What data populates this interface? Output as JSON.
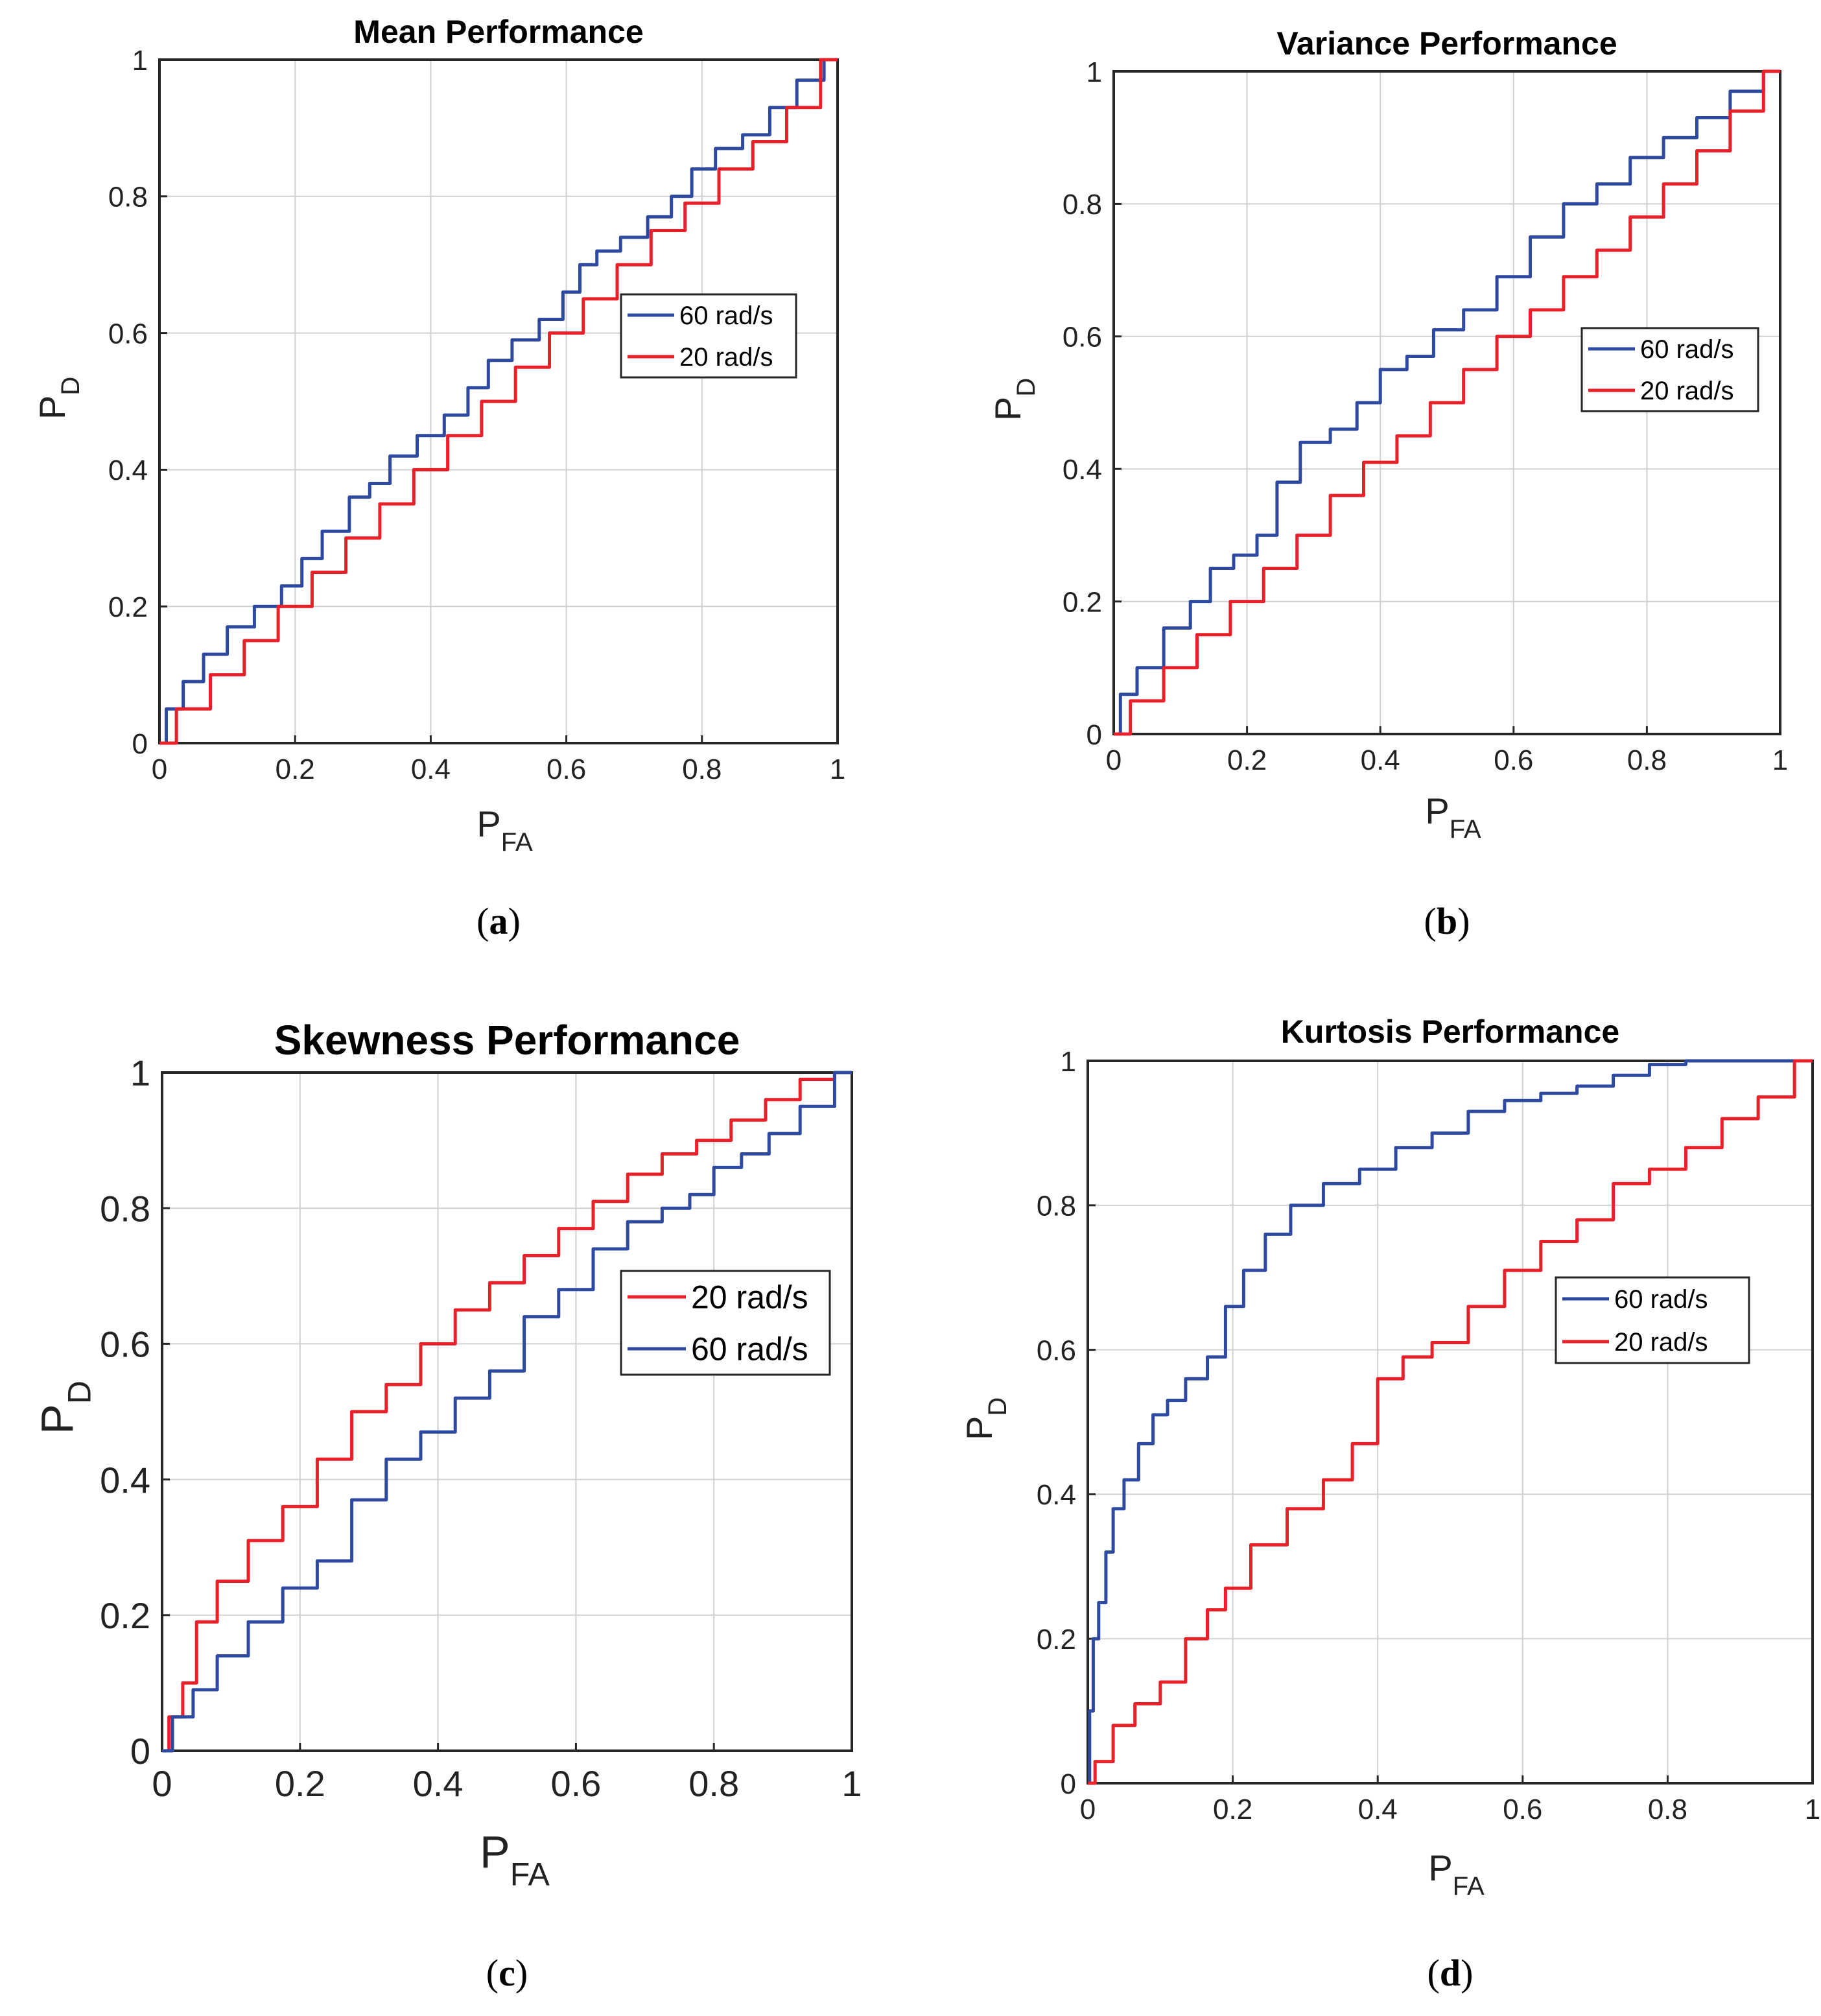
{
  "figure": {
    "colors": {
      "blue": "#2e4aa0",
      "red": "#e8202a",
      "grid": "#d0d0d0",
      "axis": "#262626"
    }
  },
  "chart_data": [
    {
      "type": "line",
      "title": "Mean Performance",
      "caption": "a",
      "xlabel": {
        "main": "P",
        "sub": "FA"
      },
      "ylabel": {
        "main": "P",
        "sub": "D"
      },
      "xlim": [
        0,
        1
      ],
      "ylim": [
        0,
        1
      ],
      "xticks": [
        "0",
        "0.2",
        "0.4",
        "0.6",
        "0.8",
        "1"
      ],
      "yticks": [
        "0",
        "0.2",
        "0.4",
        "0.6",
        "0.8",
        "1"
      ],
      "grid": true,
      "legend_position": "center-right",
      "series": [
        {
          "name": "60 rad/s",
          "color": "blue",
          "x": [
            0,
            0.02,
            0.05,
            0.08,
            0.12,
            0.16,
            0.2,
            0.22,
            0.26,
            0.3,
            0.32,
            0.36,
            0.4,
            0.44,
            0.47,
            0.5,
            0.54,
            0.58,
            0.61,
            0.63,
            0.66,
            0.7,
            0.74,
            0.77,
            0.8,
            0.84,
            0.88,
            0.92,
            0.96,
            1
          ],
          "y": [
            0,
            0.05,
            0.09,
            0.13,
            0.17,
            0.2,
            0.23,
            0.27,
            0.31,
            0.36,
            0.38,
            0.42,
            0.45,
            0.48,
            0.52,
            0.56,
            0.59,
            0.62,
            0.66,
            0.7,
            0.72,
            0.74,
            0.77,
            0.8,
            0.84,
            0.87,
            0.89,
            0.93,
            0.97,
            1
          ]
        },
        {
          "name": "20 rad/s",
          "color": "red",
          "x": [
            0,
            0.05,
            0.1,
            0.15,
            0.2,
            0.25,
            0.3,
            0.35,
            0.4,
            0.45,
            0.5,
            0.55,
            0.6,
            0.65,
            0.7,
            0.75,
            0.8,
            0.85,
            0.9,
            0.95,
            1
          ],
          "y": [
            0,
            0.05,
            0.1,
            0.15,
            0.2,
            0.25,
            0.3,
            0.35,
            0.4,
            0.45,
            0.5,
            0.55,
            0.6,
            0.65,
            0.7,
            0.75,
            0.79,
            0.84,
            0.88,
            0.93,
            1
          ]
        }
      ]
    },
    {
      "type": "line",
      "title": "Variance Performance",
      "caption": "b",
      "xlabel": {
        "main": "P",
        "sub": "FA"
      },
      "ylabel": {
        "main": "P",
        "sub": "D"
      },
      "xlim": [
        0,
        1
      ],
      "ylim": [
        0,
        1
      ],
      "xticks": [
        "0",
        "0.2",
        "0.4",
        "0.6",
        "0.8",
        "1"
      ],
      "yticks": [
        "0",
        "0.2",
        "0.4",
        "0.6",
        "0.8",
        "1"
      ],
      "grid": true,
      "legend_position": "center-right",
      "series": [
        {
          "name": "60 rad/s",
          "color": "blue",
          "x": [
            0,
            0.02,
            0.05,
            0.1,
            0.13,
            0.16,
            0.2,
            0.23,
            0.26,
            0.3,
            0.35,
            0.38,
            0.42,
            0.46,
            0.5,
            0.55,
            0.6,
            0.65,
            0.7,
            0.75,
            0.8,
            0.85,
            0.9,
            0.95,
            1
          ],
          "y": [
            0,
            0.06,
            0.1,
            0.16,
            0.2,
            0.25,
            0.27,
            0.3,
            0.38,
            0.44,
            0.46,
            0.5,
            0.55,
            0.57,
            0.61,
            0.64,
            0.69,
            0.75,
            0.8,
            0.83,
            0.87,
            0.9,
            0.93,
            0.97,
            1
          ]
        },
        {
          "name": "20 rad/s",
          "color": "red",
          "x": [
            0,
            0.05,
            0.1,
            0.15,
            0.2,
            0.25,
            0.3,
            0.35,
            0.4,
            0.45,
            0.5,
            0.55,
            0.6,
            0.65,
            0.7,
            0.75,
            0.8,
            0.85,
            0.9,
            0.95,
            1
          ],
          "y": [
            0,
            0.05,
            0.1,
            0.15,
            0.2,
            0.25,
            0.3,
            0.36,
            0.41,
            0.45,
            0.5,
            0.55,
            0.6,
            0.64,
            0.69,
            0.73,
            0.78,
            0.83,
            0.88,
            0.94,
            1
          ]
        }
      ]
    },
    {
      "type": "line",
      "title": "Skewness Performance",
      "caption": "c",
      "xlabel": {
        "main": "P",
        "sub": "FA"
      },
      "ylabel": {
        "main": "P",
        "sub": "D"
      },
      "xlim": [
        0,
        1
      ],
      "ylim": [
        0,
        1
      ],
      "xticks": [
        "0",
        "0.2",
        "0.4",
        "0.6",
        "0.8",
        "1"
      ],
      "yticks": [
        "0",
        "0.2",
        "0.4",
        "0.6",
        "0.8",
        "1"
      ],
      "grid": true,
      "legend_position": "center-right",
      "series": [
        {
          "name": "20 rad/s",
          "color": "red",
          "x": [
            0,
            0.02,
            0.04,
            0.06,
            0.1,
            0.15,
            0.2,
            0.25,
            0.3,
            0.35,
            0.4,
            0.45,
            0.5,
            0.55,
            0.6,
            0.65,
            0.7,
            0.75,
            0.8,
            0.85,
            0.9,
            0.95,
            1
          ],
          "y": [
            0,
            0.05,
            0.1,
            0.19,
            0.25,
            0.31,
            0.36,
            0.43,
            0.5,
            0.54,
            0.6,
            0.65,
            0.69,
            0.73,
            0.77,
            0.81,
            0.85,
            0.88,
            0.9,
            0.93,
            0.96,
            0.99,
            1
          ]
        },
        {
          "name": "60 rad/s",
          "color": "blue",
          "x": [
            0,
            0.03,
            0.06,
            0.1,
            0.15,
            0.2,
            0.25,
            0.3,
            0.35,
            0.4,
            0.45,
            0.5,
            0.55,
            0.6,
            0.65,
            0.7,
            0.75,
            0.78,
            0.82,
            0.86,
            0.9,
            0.95,
            1
          ],
          "y": [
            0,
            0.05,
            0.09,
            0.14,
            0.19,
            0.24,
            0.28,
            0.37,
            0.43,
            0.47,
            0.52,
            0.56,
            0.64,
            0.68,
            0.74,
            0.78,
            0.8,
            0.82,
            0.86,
            0.88,
            0.91,
            0.95,
            1
          ]
        }
      ]
    },
    {
      "type": "line",
      "title": "Kurtosis Performance",
      "caption": "d",
      "xlabel": {
        "main": "P",
        "sub": "FA"
      },
      "ylabel": {
        "main": "P",
        "sub": "D"
      },
      "xlim": [
        0,
        1
      ],
      "ylim": [
        0,
        1
      ],
      "xticks": [
        "0",
        "0.2",
        "0.4",
        "0.6",
        "0.8",
        "1"
      ],
      "yticks": [
        "0",
        "0.2",
        "0.4",
        "0.6",
        "0.8",
        "1"
      ],
      "grid": true,
      "legend_position": "center-right",
      "series": [
        {
          "name": "60 rad/s",
          "color": "blue",
          "x": [
            0,
            0.005,
            0.01,
            0.02,
            0.03,
            0.04,
            0.06,
            0.08,
            0.1,
            0.12,
            0.15,
            0.18,
            0.2,
            0.23,
            0.26,
            0.3,
            0.35,
            0.4,
            0.45,
            0.5,
            0.55,
            0.6,
            0.65,
            0.7,
            0.75,
            0.8,
            0.85,
            0.9,
            1
          ],
          "y": [
            0,
            0.1,
            0.2,
            0.25,
            0.32,
            0.38,
            0.42,
            0.47,
            0.51,
            0.53,
            0.56,
            0.59,
            0.66,
            0.71,
            0.76,
            0.8,
            0.83,
            0.85,
            0.88,
            0.9,
            0.93,
            0.945,
            0.955,
            0.965,
            0.98,
            0.995,
            1,
            1,
            1
          ]
        },
        {
          "name": "20 rad/s",
          "color": "red",
          "x": [
            0,
            0.02,
            0.05,
            0.08,
            0.12,
            0.15,
            0.18,
            0.2,
            0.25,
            0.3,
            0.35,
            0.38,
            0.42,
            0.45,
            0.5,
            0.55,
            0.6,
            0.65,
            0.7,
            0.75,
            0.8,
            0.85,
            0.9,
            0.95,
            1
          ],
          "y": [
            0,
            0.03,
            0.08,
            0.11,
            0.14,
            0.2,
            0.24,
            0.27,
            0.33,
            0.38,
            0.42,
            0.47,
            0.56,
            0.59,
            0.61,
            0.66,
            0.71,
            0.75,
            0.78,
            0.83,
            0.85,
            0.88,
            0.92,
            0.95,
            1
          ]
        }
      ]
    }
  ]
}
